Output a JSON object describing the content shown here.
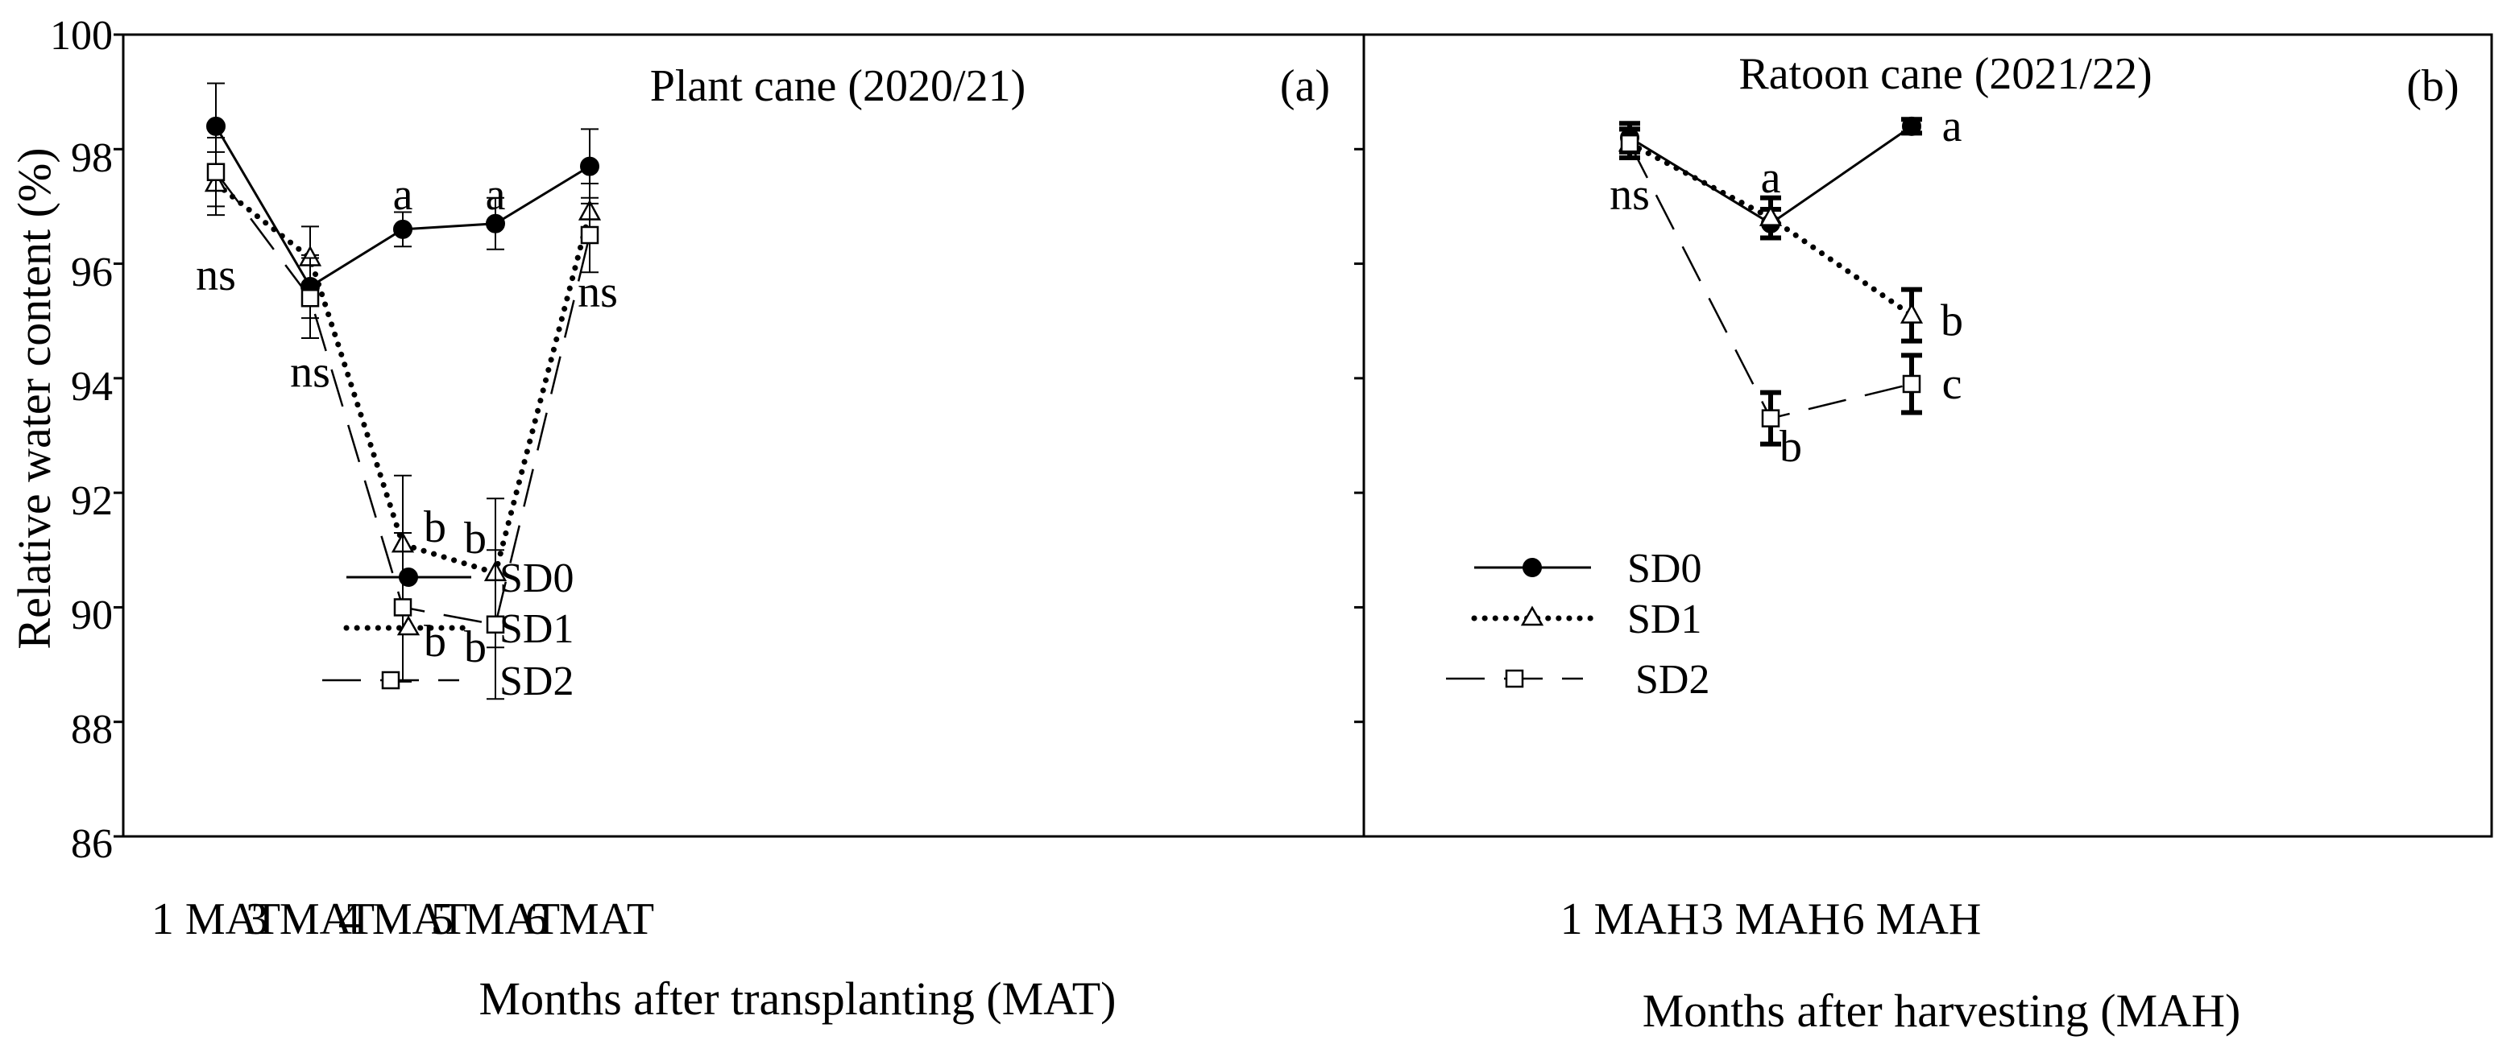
{
  "figure": {
    "y_axis_label": "Relative water content (%)",
    "y_ticks": [
      "86",
      "88",
      "90",
      "92",
      "94",
      "96",
      "98",
      "100"
    ],
    "legend_labels": [
      "SD0",
      "SD1",
      "SD2"
    ]
  },
  "chart_data": [
    {
      "type": "line",
      "panel_id": "a",
      "panel_label": "(a)",
      "title": "Plant cane (2020/21)",
      "xlabel": "Months after transplanting (MAT)",
      "ylabel": "Relative water content (%)",
      "ylim": [
        86,
        100
      ],
      "categories": [
        "1 MAT",
        "3 MAT",
        "4 MAT",
        "5 MAT",
        "6 MAT"
      ],
      "series": [
        {
          "name": "SD0",
          "values": [
            98.4,
            95.6,
            96.6,
            96.7,
            97.7
          ],
          "errors": [
            0.75,
            0.55,
            0.3,
            0.45,
            0.65
          ],
          "style": "solid",
          "marker": "filled-circle"
        },
        {
          "name": "SD1",
          "values": [
            97.4,
            96.1,
            91.1,
            90.6,
            96.9
          ],
          "errors": [
            0.55,
            0.55,
            1.2,
            1.3,
            0.5
          ],
          "style": "dotted",
          "marker": "open-triangle"
        },
        {
          "name": "SD2",
          "values": [
            97.6,
            95.4,
            90.0,
            89.7,
            96.5
          ],
          "errors": [
            0.6,
            0.7,
            1.3,
            1.3,
            0.65
          ],
          "style": "dashed",
          "marker": "open-square"
        }
      ],
      "annotations": [
        {
          "text": "ns",
          "category": "1 MAT",
          "y": 95.8
        },
        {
          "text": "ns",
          "category": "3 MAT",
          "y": 94.1
        },
        {
          "text": "a",
          "category": "4 MAT",
          "y": 97.2
        },
        {
          "text": "b",
          "category": "4 MAT",
          "y": 91.4
        },
        {
          "text": "b",
          "category": "4 MAT",
          "y": 89.4
        },
        {
          "text": "a",
          "category": "5 MAT",
          "y": 97.2
        },
        {
          "text": "b",
          "category": "5 MAT",
          "y": 91.2
        },
        {
          "text": "b",
          "category": "5 MAT",
          "y": 89.3
        },
        {
          "text": "ns",
          "category": "6 MAT",
          "y": 95.5
        }
      ]
    },
    {
      "type": "line",
      "panel_id": "b",
      "panel_label": "(b)",
      "title": "Ratoon cane (2021/22)",
      "xlabel": "Months after harvesting (MAH)",
      "ylabel": "Relative water content (%)",
      "ylim": [
        86,
        100
      ],
      "categories": [
        "1 MAH",
        "3 MAH",
        "6 MAH"
      ],
      "series": [
        {
          "name": "SD0",
          "values": [
            98.2,
            96.7,
            98.4
          ],
          "errors": [
            0.25,
            0.25,
            0.12
          ],
          "style": "solid",
          "marker": "filled-circle"
        },
        {
          "name": "SD1",
          "values": [
            98.1,
            96.8,
            95.1
          ],
          "errors": [
            0.25,
            0.35,
            0.45
          ],
          "style": "dotted",
          "marker": "open-triangle"
        },
        {
          "name": "SD2",
          "values": [
            98.1,
            93.3,
            93.9
          ],
          "errors": [
            0.25,
            0.45,
            0.5
          ],
          "style": "dashed",
          "marker": "open-square"
        }
      ],
      "annotations": [
        {
          "text": "ns",
          "category": "1 MAH",
          "y": 97.2
        },
        {
          "text": "a",
          "category": "3 MAH",
          "y": 97.5
        },
        {
          "text": "b",
          "category": "3 MAH",
          "y": 92.8
        },
        {
          "text": "a",
          "category": "6 MAH",
          "y": 98.4
        },
        {
          "text": "b",
          "category": "6 MAH",
          "y": 95.0
        },
        {
          "text": "c",
          "category": "6 MAH",
          "y": 93.9
        }
      ]
    }
  ]
}
